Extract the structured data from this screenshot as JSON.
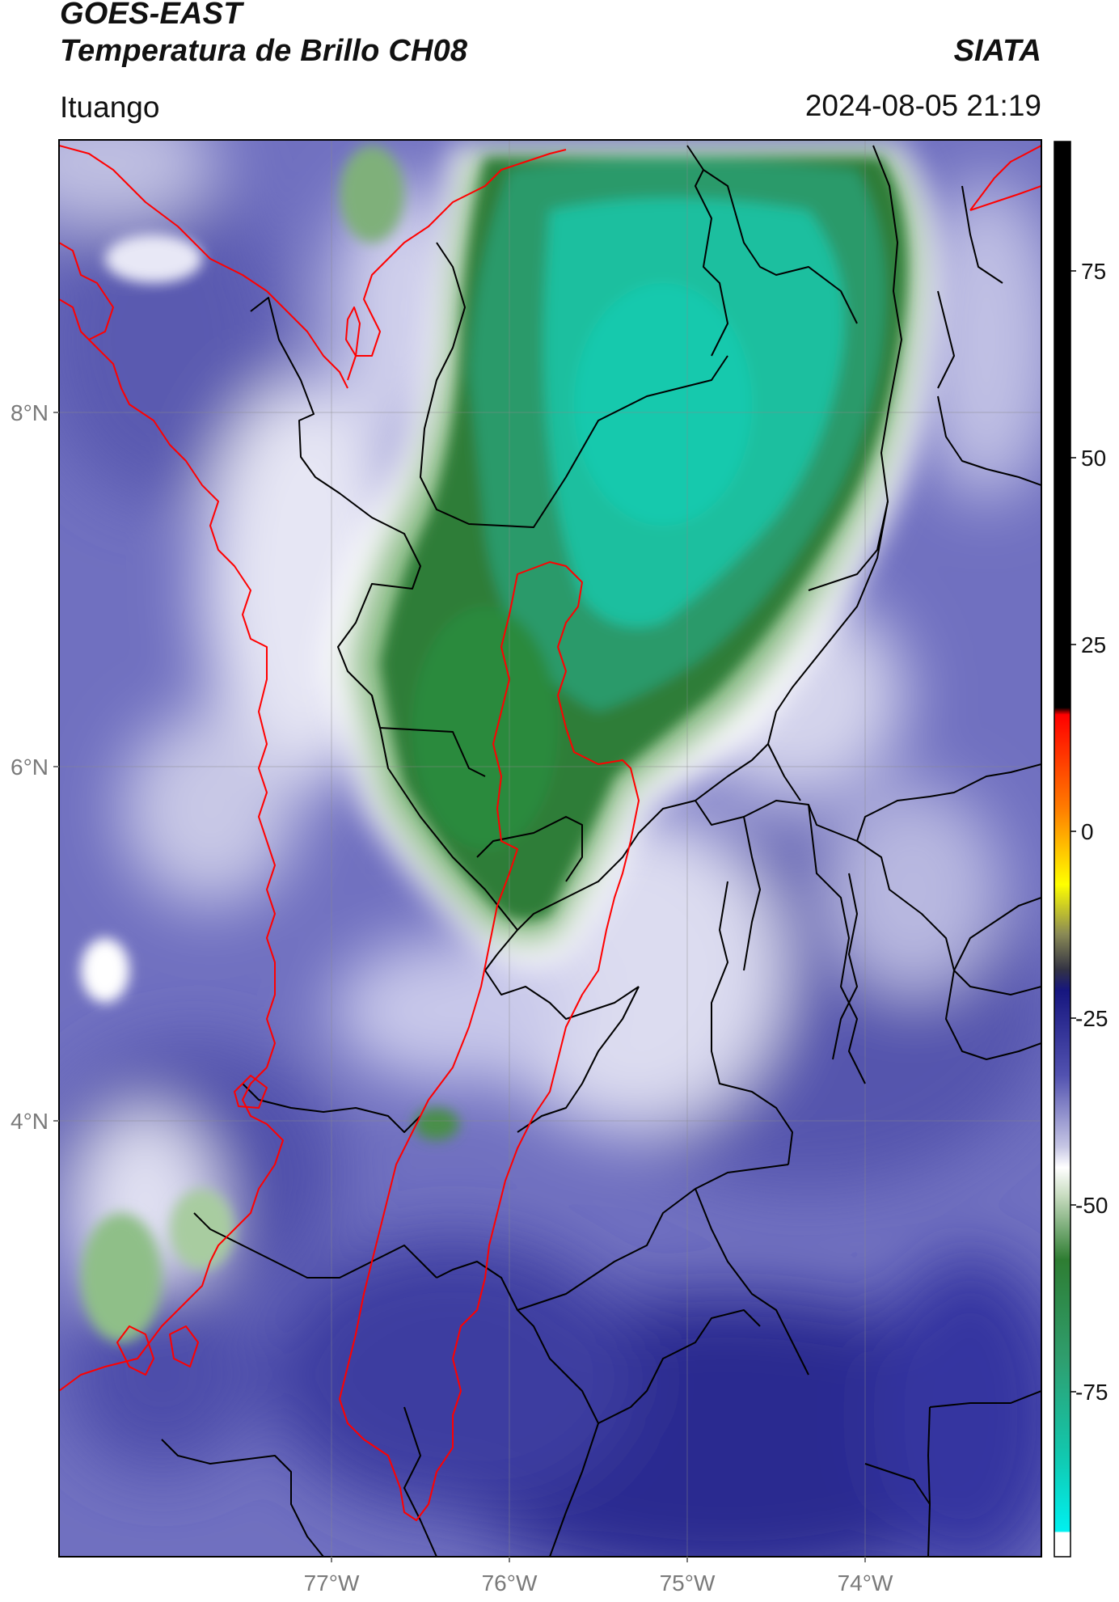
{
  "header": {
    "title_line1": "GOES-EAST",
    "title_line2": "Temperatura de Brillo CH08",
    "brand": "SIATA",
    "location": "Ituango",
    "timestamp": "2024-08-05 21:19"
  },
  "map": {
    "lat_ticks": [
      "8°N",
      "6°N",
      "4°N"
    ],
    "lon_ticks": [
      "77°W",
      "76°W",
      "75°W",
      "74°W"
    ]
  },
  "colorbar": {
    "tick_labels": [
      "75",
      "50",
      "25",
      "0",
      "-25",
      "-50",
      "-75"
    ],
    "colors": {
      "black": "#000000",
      "red": "#ff0000",
      "orange": "#ff8c00",
      "yellow": "#ffff00",
      "olive": "#6f6b3e",
      "navy": "#1a1a8c",
      "blue_purple": "#5b5bb5",
      "lavender": "#c8c8e6",
      "white": "#ffffff",
      "green": "#2e8b2e",
      "teal_green": "#2fa77a",
      "cyan": "#00e5e5"
    }
  }
}
